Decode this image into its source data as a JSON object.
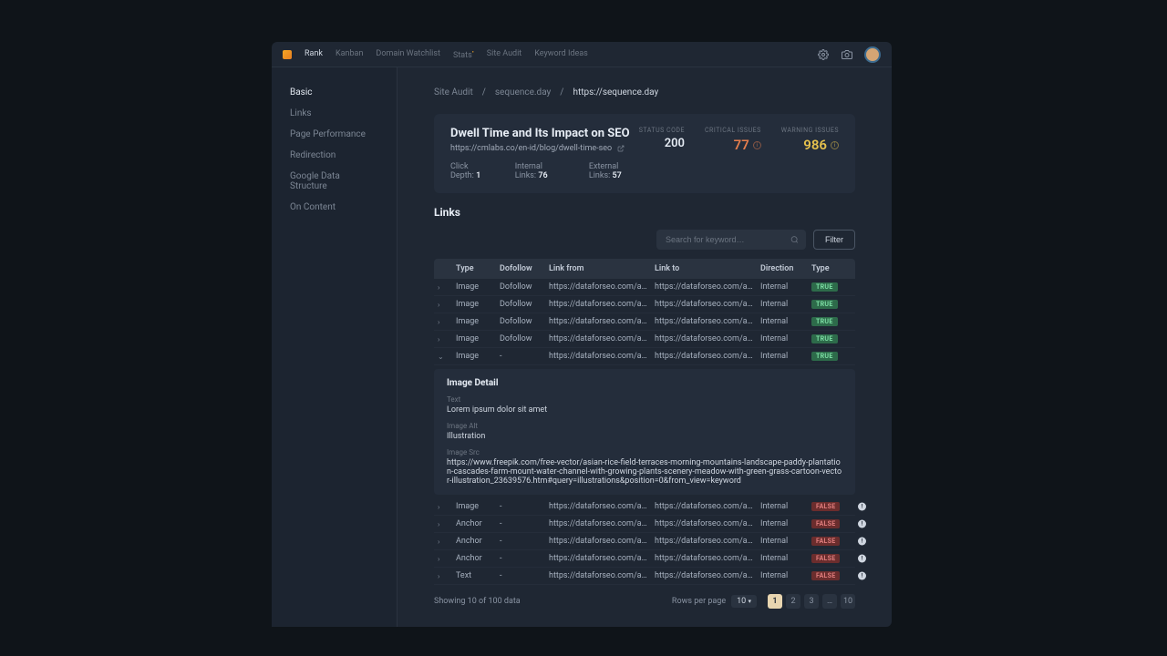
{
  "topnav": {
    "items": [
      {
        "label": "Rank",
        "active": true
      },
      {
        "label": "Kanban",
        "active": false
      },
      {
        "label": "Domain Watchlist",
        "active": false
      },
      {
        "label": "Stats",
        "active": false,
        "sup": "•"
      },
      {
        "label": "Site Audit",
        "active": false
      },
      {
        "label": "Keyword Ideas",
        "active": false
      }
    ]
  },
  "sidebar": {
    "items": [
      {
        "label": "Basic",
        "active": true
      },
      {
        "label": "Links",
        "active": false
      },
      {
        "label": "Page Performance",
        "active": false
      },
      {
        "label": "Redirection",
        "active": false
      },
      {
        "label": "Google Data Structure",
        "active": false
      },
      {
        "label": "On Content",
        "active": false
      }
    ]
  },
  "breadcrumb": {
    "a": "Site Audit",
    "b": "sequence.day",
    "c": "https://sequence.day",
    "sep": "/"
  },
  "header": {
    "title": "Dwell Time and Its Impact on SEO",
    "url": "https://cmlabs.co/en-id/blog/dwell-time-seo",
    "click_depth_label": "Click Depth:",
    "click_depth": "1",
    "internal_links_label": "Internal Links:",
    "internal_links": "76",
    "external_links_label": "External Links:",
    "external_links": "57",
    "stats": {
      "status_label": "STATUS CODE",
      "status_value": "200",
      "critical_label": "CRITICAL ISSUES",
      "critical_value": "77",
      "warning_label": "WARNING ISSUES",
      "warning_value": "986"
    }
  },
  "links": {
    "title": "Links",
    "search_placeholder": "Search for keyword…",
    "filter_label": "Filter",
    "columns": {
      "type": "Type",
      "dofollow": "Dofollow",
      "link_from": "Link from",
      "link_to": "Link to",
      "direction": "Direction",
      "type2": "Type"
    },
    "rows": [
      {
        "type": "Image",
        "dofollow": "Dofollow",
        "from": "https://dataforseo.com/api…",
        "to": "https://dataforseo.com/api…",
        "dir": "Internal",
        "badge": "TRUE",
        "expanded": false,
        "warn": false
      },
      {
        "type": "Image",
        "dofollow": "Dofollow",
        "from": "https://dataforseo.com/api…",
        "to": "https://dataforseo.com/api…",
        "dir": "Internal",
        "badge": "TRUE",
        "expanded": false,
        "warn": false
      },
      {
        "type": "Image",
        "dofollow": "Dofollow",
        "from": "https://dataforseo.com/api…",
        "to": "https://dataforseo.com/api…",
        "dir": "Internal",
        "badge": "TRUE",
        "expanded": false,
        "warn": false
      },
      {
        "type": "Image",
        "dofollow": "Dofollow",
        "from": "https://dataforseo.com/api…",
        "to": "https://dataforseo.com/api…",
        "dir": "Internal",
        "badge": "TRUE",
        "expanded": false,
        "warn": false
      },
      {
        "type": "Image",
        "dofollow": "-",
        "from": "https://dataforseo.com/api…",
        "to": "https://dataforseo.com/api…",
        "dir": "Internal",
        "badge": "TRUE",
        "expanded": true,
        "warn": false
      },
      {
        "type": "Image",
        "dofollow": "-",
        "from": "https://dataforseo.com/api…",
        "to": "https://dataforseo.com/api…",
        "dir": "Internal",
        "badge": "FALSE",
        "expanded": false,
        "warn": true
      },
      {
        "type": "Anchor",
        "dofollow": "-",
        "from": "https://dataforseo.com/api…",
        "to": "https://dataforseo.com/api…",
        "dir": "Internal",
        "badge": "FALSE",
        "expanded": false,
        "warn": true
      },
      {
        "type": "Anchor",
        "dofollow": "-",
        "from": "https://dataforseo.com/api…",
        "to": "https://dataforseo.com/api…",
        "dir": "Internal",
        "badge": "FALSE",
        "expanded": false,
        "warn": true
      },
      {
        "type": "Anchor",
        "dofollow": "-",
        "from": "https://dataforseo.com/api…",
        "to": "https://dataforseo.com/api…",
        "dir": "Internal",
        "badge": "FALSE",
        "expanded": false,
        "warn": true
      },
      {
        "type": "Text",
        "dofollow": "-",
        "from": "https://dataforseo.com/api…",
        "to": "https://dataforseo.com/api…",
        "dir": "Internal",
        "badge": "FALSE",
        "expanded": false,
        "warn": true
      }
    ],
    "detail": {
      "title": "Image Detail",
      "text_label": "Text",
      "text_value": "Lorem ipsum dolor sit amet",
      "alt_label": "Image Alt",
      "alt_value": "Illustration",
      "src_label": "Image Src",
      "src_value": "https://www.freepik.com/free-vector/asian-rice-field-terraces-morning-mountains-landscape-paddy-plantation-cascades-farm-mount-water-channel-with-growing-plants-scenery-meadow-with-green-grass-cartoon-vector-illustration_23639576.htm#query=illustrations&position=0&from_view=keyword"
    }
  },
  "pager": {
    "showing": "Showing 10 of 100 data",
    "rows_label": "Rows per page",
    "rows_value": "10",
    "pages": [
      "1",
      "2",
      "3",
      "…",
      "10"
    ]
  },
  "colors": {
    "bg": "#0f1419",
    "panel": "#1f2733",
    "card": "#242d3b",
    "border": "#2a3340",
    "text_primary": "#e6ecf4",
    "text_secondary": "#a8b2c0",
    "text_muted": "#6b7480",
    "critical": "#e67e4d",
    "warning": "#e6c24d",
    "badge_true_bg": "#2d6b4a",
    "badge_true_fg": "#7de0a5",
    "badge_false_bg": "#6b2d2d",
    "badge_false_fg": "#e07d7d",
    "page_active": "#e8d5b0"
  }
}
